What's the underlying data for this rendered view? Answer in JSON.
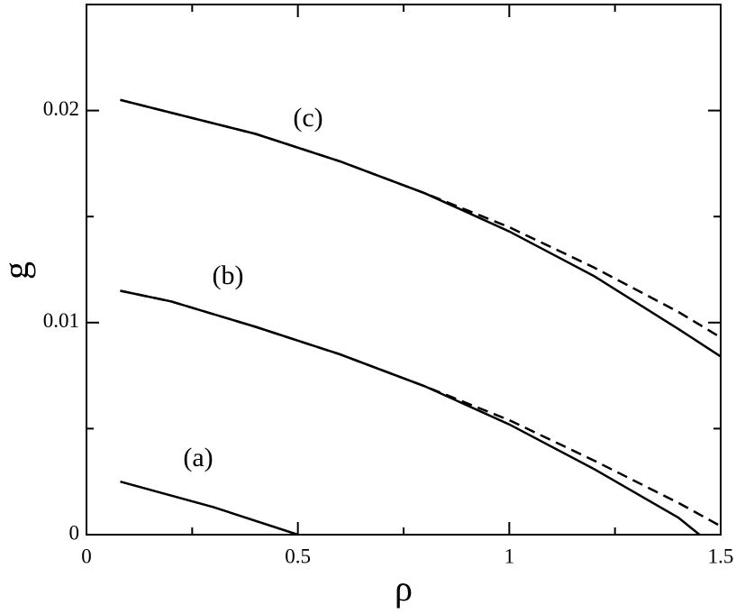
{
  "chart_data": {
    "type": "line",
    "xlabel": "ρ",
    "ylabel": "g",
    "xlim": [
      0,
      1.5
    ],
    "ylim": [
      0,
      0.025
    ],
    "xticks": [
      0,
      0.5,
      1,
      1.5
    ],
    "yticks": [
      0,
      0.01,
      0.02
    ],
    "xminor": [
      0.25,
      0.75,
      1.25
    ],
    "yminor": [
      0.005,
      0.015
    ],
    "color": "#000000",
    "series": [
      {
        "x": [
          0.08,
          0.2,
          0.4,
          0.6,
          0.8,
          1.0,
          1.2,
          1.4,
          1.5
        ],
        "values": [
          0.0205,
          0.0199,
          0.0189,
          0.0176,
          0.0161,
          0.0143,
          0.0122,
          0.0097,
          0.0084
        ],
        "dashed": false
      },
      {
        "x": [
          0.08,
          0.2,
          0.4,
          0.6,
          0.8,
          1.0,
          1.2,
          1.4,
          1.5
        ],
        "values": [
          0.0205,
          0.0199,
          0.0189,
          0.0176,
          0.0161,
          0.0145,
          0.0126,
          0.0105,
          0.0093
        ],
        "dashed": true
      },
      {
        "x": [
          0.08,
          0.2,
          0.4,
          0.6,
          0.8,
          1.0,
          1.2,
          1.4,
          1.45
        ],
        "values": [
          0.0115,
          0.011,
          0.0098,
          0.0085,
          0.007,
          0.0052,
          0.0031,
          0.0008,
          0
        ],
        "dashed": false
      },
      {
        "x": [
          0.08,
          0.2,
          0.4,
          0.6,
          0.8,
          1.0,
          1.2,
          1.4,
          1.5
        ],
        "values": [
          0.0115,
          0.011,
          0.0098,
          0.0085,
          0.007,
          0.0054,
          0.0035,
          0.0015,
          0.0004
        ],
        "dashed": true
      },
      {
        "x": [
          0.08,
          0.3,
          0.5
        ],
        "values": [
          0.0025,
          0.0013,
          0
        ],
        "dashed": false
      }
    ],
    "annotations": [
      "(a)",
      "(b)",
      "(c)"
    ]
  }
}
